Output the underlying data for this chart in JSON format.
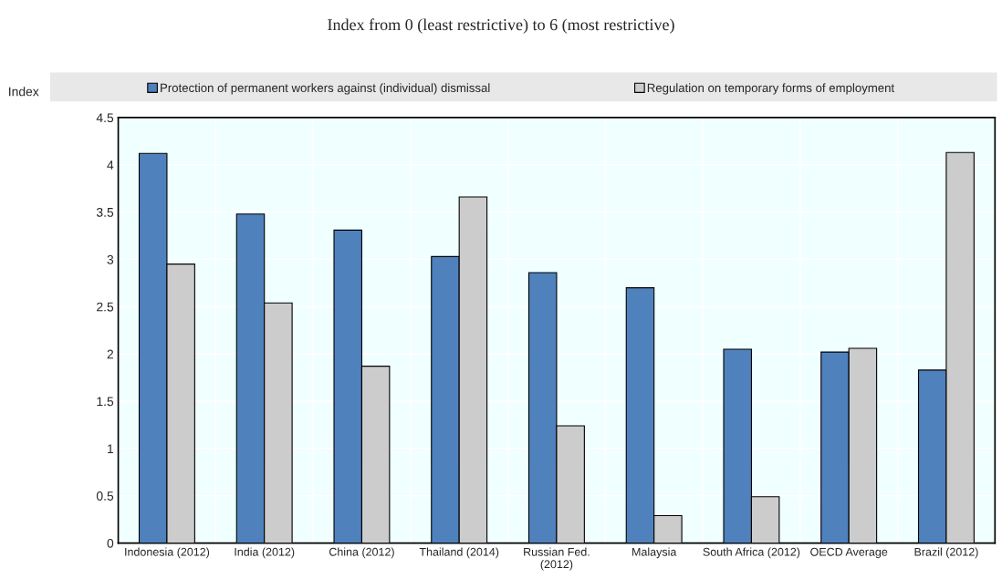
{
  "chart_data": {
    "type": "bar",
    "title": "Index from 0 (least restrictive) to 6 (most restrictive)",
    "ylabel": "Index",
    "categories": [
      "Indonesia (2012)",
      "India (2012)",
      "China (2012)",
      "Thailand (2014)",
      "Russian Fed.\n(2012)",
      "Malaysia",
      "South Africa (2012)",
      "OECD Average",
      "Brazil (2012)"
    ],
    "series": [
      {
        "name": "Protection of permanent workers against (individual) dismissal",
        "color": "#4f81bd",
        "values": [
          4.12,
          3.48,
          3.31,
          3.03,
          2.86,
          2.7,
          2.05,
          2.02,
          1.83
        ]
      },
      {
        "name": "Regulation on temporary forms of employment",
        "color": "#cccccc",
        "values": [
          2.95,
          2.54,
          1.87,
          3.66,
          1.24,
          0.29,
          0.49,
          2.06,
          4.13
        ]
      }
    ],
    "ylim": [
      0,
      4.5
    ],
    "yticks": [
      0,
      0.5,
      1,
      1.5,
      2,
      2.5,
      3,
      3.5,
      4,
      4.5
    ],
    "grid": true,
    "legend": "top"
  }
}
